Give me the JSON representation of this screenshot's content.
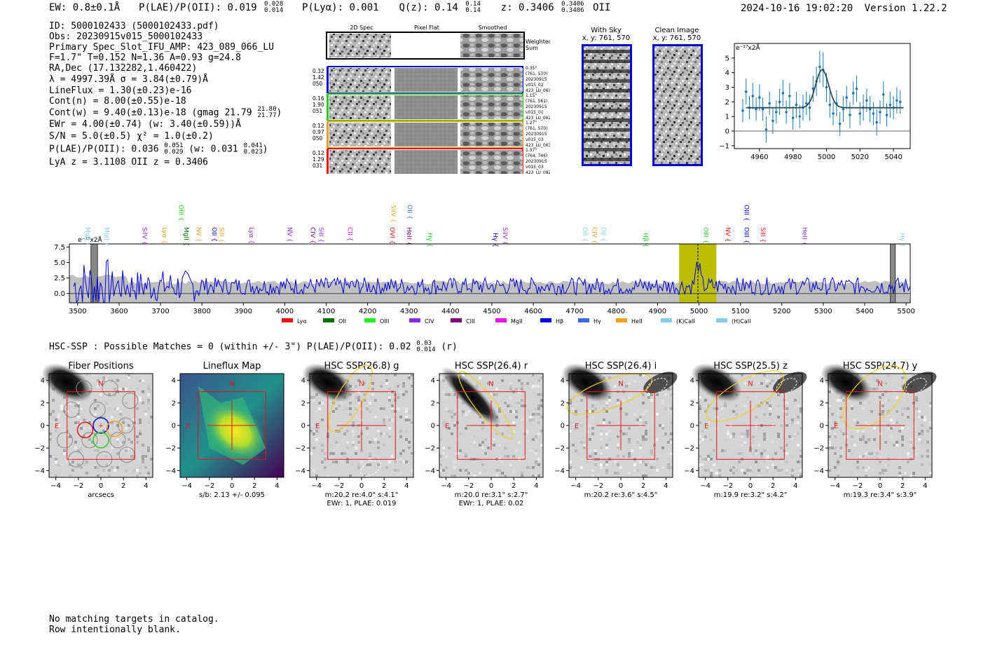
{
  "header": {
    "ew_label": "EW: 0.8±0.1Å",
    "plae_label": "P(LAE)/P(OII): 0.019",
    "plae_hi": "0.028",
    "plae_lo": "0.014",
    "plya_label": "P(Lyα): 0.001",
    "qz_label": "Q(z): 0.14",
    "qz_hi": "0.14",
    "qz_lo": "0.14",
    "z_label": "z: 0.3406",
    "z_hi": "0.3406",
    "z_lo": "0.3406",
    "line_name": "OII",
    "timestamp": "2024-10-16 19:02:20",
    "version": "Version 1.22.2"
  },
  "info": {
    "id": "ID: 5000102433 (5000102433.pdf)",
    "obs": "Obs: 20230915v015_5000102433",
    "primary": "Primary Spec_Slot_IFU_AMP: 423_089_066_LU",
    "params": "F=1.7\"  T=0.152  N=1.36  A=0.93  g=24.8",
    "radec": "RA,Dec (17.132282,1.460422)",
    "lambda": "λ = 4997.39Å   σ = 3.84(±0.79)Å",
    "lineflux": "LineFlux = 1.30(±0.23)e-16",
    "contn": "Cont(n) = 8.00(±0.55)e-18",
    "contw": "Cont(w) = 9.40(±0.13)e-18 (gmag 21.79",
    "contw_hi": "21.80",
    "contw_lo": "21.77",
    "contw_end": ")",
    "ewr": "EWr = 4.00(±0.74) (w: 3.40(±0.59))Å",
    "sn": "S/N = 5.0(±0.5)  χ² = 1.0(±0.2)",
    "plae": "P(LAE)/P(OII): 0.036",
    "plae_hi": "0.051",
    "plae_lo": "0.029",
    "plae_w": "(w: 0.031",
    "plae_w_hi": "0.041",
    "plae_w_lo": "0.023",
    "plae_w_end": ")",
    "lya": "LyA z = 3.1108   OII z = 0.3406"
  },
  "cutouts": {
    "titles": [
      "2D Spec",
      "Pixel Flat",
      "Smoothed"
    ],
    "weighted": [
      "Weighted",
      "Sum"
    ],
    "rows": [
      {
        "left": [
          "0.32",
          "1.42",
          "050"
        ],
        "color": "#0000cc",
        "right": [
          "0.35\"",
          "(761, 570)",
          "20230915",
          "v015_02",
          "423_LU_063"
        ]
      },
      {
        "left": [
          "0.16",
          "1.90",
          "051"
        ],
        "color": "#22cc22",
        "right": [
          "1.15\"",
          "(761, 561)",
          "20230915",
          "v015_01",
          "423_LU_062"
        ]
      },
      {
        "left": [
          "0.12",
          "0.97",
          "050"
        ],
        "color": "#f0a020",
        "right": [
          "1.27\"",
          "(761, 570)",
          "20230915",
          "v015_03",
          "423_LU_063"
        ]
      },
      {
        "left": [
          "0.12",
          "1.29",
          "031"
        ],
        "color": "#ee1111",
        "right": [
          "1.37\"",
          "(764, 746)",
          "20230915",
          "v015_03",
          "423_LU_082"
        ]
      }
    ]
  },
  "sky": {
    "with_sky": [
      "With Sky",
      "x, y: 761, 570"
    ],
    "clean": [
      "Clean Image",
      "x, y: 761, 570"
    ]
  },
  "fit_chart": {
    "type": "scatter",
    "units": "e⁻¹⁷x2Å",
    "xlim": [
      4945,
      5050
    ],
    "ylim": [
      -1.2,
      6
    ],
    "xticks": [
      4960,
      4980,
      5000,
      5020,
      5040
    ],
    "yticks": [
      -1,
      0,
      1,
      2,
      3,
      4,
      5
    ],
    "model": {
      "continuum": 1.6,
      "amplitude": 2.6,
      "center": 4997.4,
      "sigma": 3.84
    },
    "points": [
      [
        4950,
        1.4,
        0.8
      ],
      [
        4952,
        2.7,
        0.9
      ],
      [
        4954,
        1.6,
        0.8
      ],
      [
        4956,
        2.4,
        0.9
      ],
      [
        4958,
        1.5,
        0.8
      ],
      [
        4960,
        2.3,
        0.9
      ],
      [
        4962,
        1.5,
        0.8
      ],
      [
        4964,
        0.1,
        0.9
      ],
      [
        4966,
        1.9,
        0.8
      ],
      [
        4968,
        0.7,
        0.9
      ],
      [
        4970,
        1.3,
        0.8
      ],
      [
        4972,
        2.0,
        0.9
      ],
      [
        4974,
        2.6,
        0.9
      ],
      [
        4976,
        1.3,
        0.8
      ],
      [
        4978,
        2.4,
        0.9
      ],
      [
        4980,
        0.9,
        0.8
      ],
      [
        4982,
        1.8,
        0.9
      ],
      [
        4984,
        1.0,
        0.8
      ],
      [
        4986,
        1.6,
        0.9
      ],
      [
        4988,
        1.9,
        0.8
      ],
      [
        4990,
        1.6,
        0.9
      ],
      [
        4992,
        2.9,
        0.9
      ],
      [
        4994,
        3.4,
        1.0
      ],
      [
        4996,
        4.4,
        1.1
      ],
      [
        4998,
        4.2,
        1.2
      ],
      [
        5000,
        3.0,
        1.0
      ],
      [
        5002,
        1.8,
        0.9
      ],
      [
        5004,
        1.2,
        0.8
      ],
      [
        5006,
        1.9,
        0.9
      ],
      [
        5008,
        0.5,
        0.8
      ],
      [
        5010,
        1.5,
        0.9
      ],
      [
        5012,
        2.3,
        0.8
      ],
      [
        5014,
        1.1,
        0.9
      ],
      [
        5016,
        2.6,
        0.8
      ],
      [
        5018,
        2.9,
        0.9
      ],
      [
        5020,
        1.2,
        0.8
      ],
      [
        5022,
        1.6,
        0.9
      ],
      [
        5024,
        2.1,
        0.8
      ],
      [
        5026,
        1.5,
        0.9
      ],
      [
        5028,
        1.2,
        0.8
      ],
      [
        5030,
        0.6,
        0.9
      ],
      [
        5032,
        1.3,
        0.8
      ],
      [
        5034,
        2.5,
        0.9
      ],
      [
        5036,
        1.1,
        0.8
      ],
      [
        5038,
        1.8,
        0.9
      ],
      [
        5040,
        1.6,
        0.8
      ],
      [
        5042,
        2.1,
        0.9
      ],
      [
        5044,
        2.0,
        0.8
      ]
    ]
  },
  "spectrum": {
    "type": "line",
    "units": "e⁻¹⁷x2Å",
    "xlim": [
      3480,
      5510
    ],
    "ylim": [
      -1.5,
      8
    ],
    "xticks": [
      3500,
      3600,
      3700,
      3800,
      3900,
      4000,
      4100,
      4200,
      4300,
      4400,
      4500,
      4600,
      4700,
      4800,
      4900,
      5000,
      5100,
      5200,
      5300,
      5400,
      5500
    ],
    "yticks": [
      0.0,
      2.5,
      5.0,
      7.5
    ],
    "highlight": [
      4952,
      5042
    ],
    "line_center": 4997.4,
    "masked": [
      [
        3532,
        3548
      ],
      [
        5462,
        5474
      ]
    ],
    "sky_level": 1.8,
    "lines": [
      {
        "name": "MgII",
        "wave": 3515,
        "color": "#87ceeb",
        "tier": 1
      },
      {
        "name": "MgII",
        "wave": 3560,
        "color": "#87ceeb",
        "tier": 1
      },
      {
        "name": "SiIV",
        "wave": 3652,
        "color": "#8a2be2",
        "tier": 1
      },
      {
        "name": "Lyα",
        "wave": 3700,
        "color": "#f0a020",
        "tier": 1
      },
      {
        "name": "OIII",
        "wave": 3740,
        "color": "#22cc22",
        "tier": 3
      },
      {
        "name": "MgII",
        "wave": 3752,
        "color": "#006400",
        "tier": 1
      },
      {
        "name": "NV",
        "wave": 3782,
        "color": "#f0a020",
        "tier": 1
      },
      {
        "name": "OII",
        "wave": 3820,
        "color": "#0000cc",
        "tier": 1
      },
      {
        "name": "SiII",
        "wave": 3838,
        "color": "#f0a020",
        "tier": 1
      },
      {
        "name": "Lyα",
        "wave": 3910,
        "color": "#8a2be2",
        "tier": 1
      },
      {
        "name": "NV",
        "wave": 4002,
        "color": "#8a2be2",
        "tier": 1
      },
      {
        "name": "CIV",
        "wave": 4058,
        "color": "#800080",
        "tier": 1
      },
      {
        "name": "SiII",
        "wave": 4078,
        "color": "#8a2be2",
        "tier": 1
      },
      {
        "name": "CII",
        "wave": 4147,
        "color": "#ee11ee",
        "tier": 1
      },
      {
        "name": "SiIV",
        "wave": 4252,
        "color": "#f0a020",
        "tier": 3
      },
      {
        "name": "OVI",
        "wave": 4250,
        "color": "#ee1111",
        "tier": 1
      },
      {
        "name": "OII",
        "wave": 4292,
        "color": "#4169e1",
        "tier": 3
      },
      {
        "name": "HeII",
        "wave": 4290,
        "color": "#800080",
        "tier": 1
      },
      {
        "name": "Hγ",
        "wave": 4340,
        "color": "#22cc22",
        "tier": 2
      },
      {
        "name": "Hγ",
        "wave": 4498,
        "color": "#0000cc",
        "tier": 2
      },
      {
        "name": "SiIV",
        "wave": 4522,
        "color": "#8a2be2",
        "tier": 1
      },
      {
        "name": "OII",
        "wave": 4715,
        "color": "#87ceeb",
        "tier": 1
      },
      {
        "name": "CIV",
        "wave": 4738,
        "color": "#f0a020",
        "tier": 1
      },
      {
        "name": "OII",
        "wave": 4760,
        "color": "#87ceeb",
        "tier": 1
      },
      {
        "name": "Hβ",
        "wave": 4861,
        "color": "#22cc22",
        "tier": 2
      },
      {
        "name": "OIII",
        "wave": 5007,
        "color": "#22cc22",
        "tier": 1
      },
      {
        "name": "NV",
        "wave": 5060,
        "color": "#ee1111",
        "tier": 1
      },
      {
        "name": "OIII",
        "wave": 5105,
        "color": "#0000cc",
        "tier": 3
      },
      {
        "name": "OIII",
        "wave": 5105,
        "color": "#0000cc",
        "tier": 1
      },
      {
        "name": "SiII",
        "wave": 5145,
        "color": "#ee1111",
        "tier": 1
      },
      {
        "name": "HeII",
        "wave": 5245,
        "color": "#8a2be2",
        "tier": 1
      },
      {
        "name": "Hγ",
        "wave": 5480,
        "color": "#87ceeb",
        "tier": 2
      }
    ],
    "legend": [
      {
        "name": "Lyα",
        "color": "#ee1111"
      },
      {
        "name": "OII",
        "color": "#007000"
      },
      {
        "name": "OIII",
        "color": "#22ee22"
      },
      {
        "name": "CIV",
        "color": "#8a2be2"
      },
      {
        "name": "CIII",
        "color": "#800080"
      },
      {
        "name": "MgII",
        "color": "#ee11ee"
      },
      {
        "name": "Hβ",
        "color": "#0000ee"
      },
      {
        "name": "Hγ",
        "color": "#4169e1"
      },
      {
        "name": "HeII",
        "color": "#f0a020"
      },
      {
        "name": "(K)CaII",
        "color": "#87ceeb"
      },
      {
        "name": "(H)CaII",
        "color": "#87ceeb"
      }
    ]
  },
  "hsc": {
    "heading": "HSC-SSP : Possible Matches = 0 (within +/- 3\")  P(LAE)/P(OII): 0.02",
    "heading_hi": "0.03",
    "heading_lo": "0.014",
    "heading_end": "(r)",
    "xticks": [
      -4,
      -2,
      0,
      2,
      4
    ],
    "yticks": [
      4,
      2,
      0,
      -2,
      -4
    ],
    "north": "N",
    "east": "E",
    "panels": [
      {
        "title": "Fiber Positions",
        "cap1": "arcsecs",
        "cap2": ""
      },
      {
        "title": "Lineflux Map",
        "cap1": "s/b: 2.13 +/- 0.095",
        "cap2": ""
      },
      {
        "title": "HSC SSP(26.8) g",
        "cap1": "m:20.2  re:4.0\"  s:4.1\"",
        "cap2": "EWr: 1, PLAE: 0.019"
      },
      {
        "title": "HSC SSP(26.4) r",
        "cap1": "m:20.0  re:3.1\"  s:2.7\"",
        "cap2": "EWr: 1, PLAE: 0.02"
      },
      {
        "title": "HSC SSP(26.4) i",
        "cap1": "m:20.2  re:3.6\"  s:4.5\"",
        "cap2": ""
      },
      {
        "title": "HSC SSP(25.5) z",
        "cap1": "m:19.9  re:3.2\"  s:4.2\"",
        "cap2": ""
      },
      {
        "title": "HSC SSP(24.7) y",
        "cap1": "m:19.3  re:3.4\"  s:3.9\"",
        "cap2": ""
      }
    ]
  },
  "footer": {
    "line1": "No matching targets in catalog.",
    "line2": "Row intentionally blank."
  },
  "chart_data": [
    {
      "type": "scatter",
      "title": "",
      "xlabel": "",
      "ylabel": "e⁻¹⁷x2Å",
      "xlim": [
        4945,
        5050
      ],
      "ylim": [
        -1.2,
        6
      ]
    },
    {
      "type": "line",
      "title": "",
      "xlabel": "",
      "ylabel": "e⁻¹⁷x2Å",
      "xlim": [
        3480,
        5510
      ],
      "ylim": [
        -1.5,
        8
      ]
    }
  ]
}
